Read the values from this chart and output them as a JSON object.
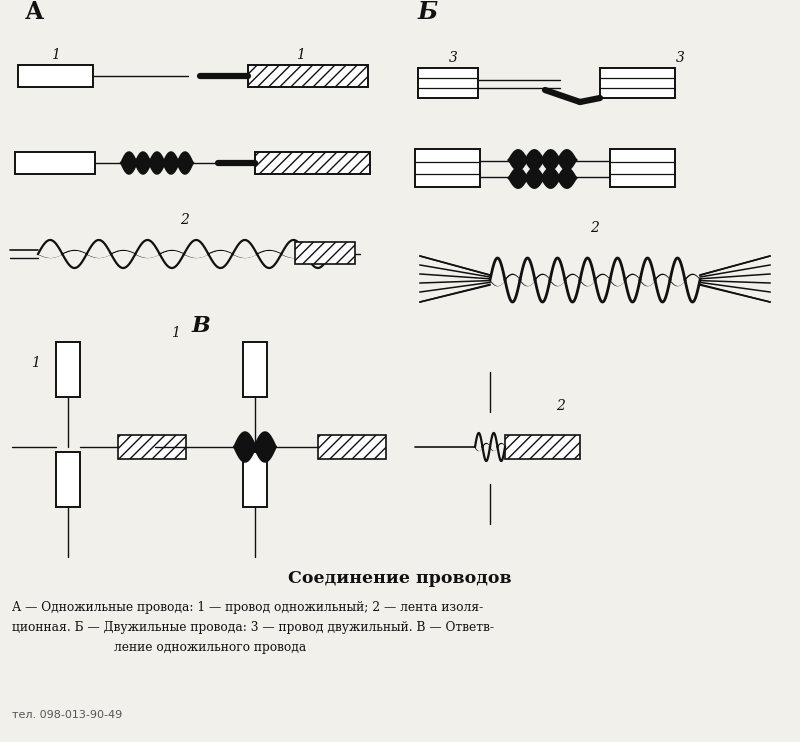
{
  "title": "Соединение проводов",
  "caption_line1": "А — Одножильные провода: 1 — провод одножильный; 2 — лента изоля-",
  "caption_line2": "ционная. Б — Двужильные провода: 3 — провод двужильный. В — Ответв-",
  "caption_line3": "ление одножильного провода",
  "phone": "тел. 098-013-90-49",
  "bg_color": "#f2f0eb",
  "line_color": "#111111",
  "label_A": "А",
  "label_B": "Б",
  "label_V": "В",
  "label_1": "1",
  "label_2": "2",
  "label_3": "3",
  "figw": 8.0,
  "figh": 7.42,
  "dpi": 100
}
